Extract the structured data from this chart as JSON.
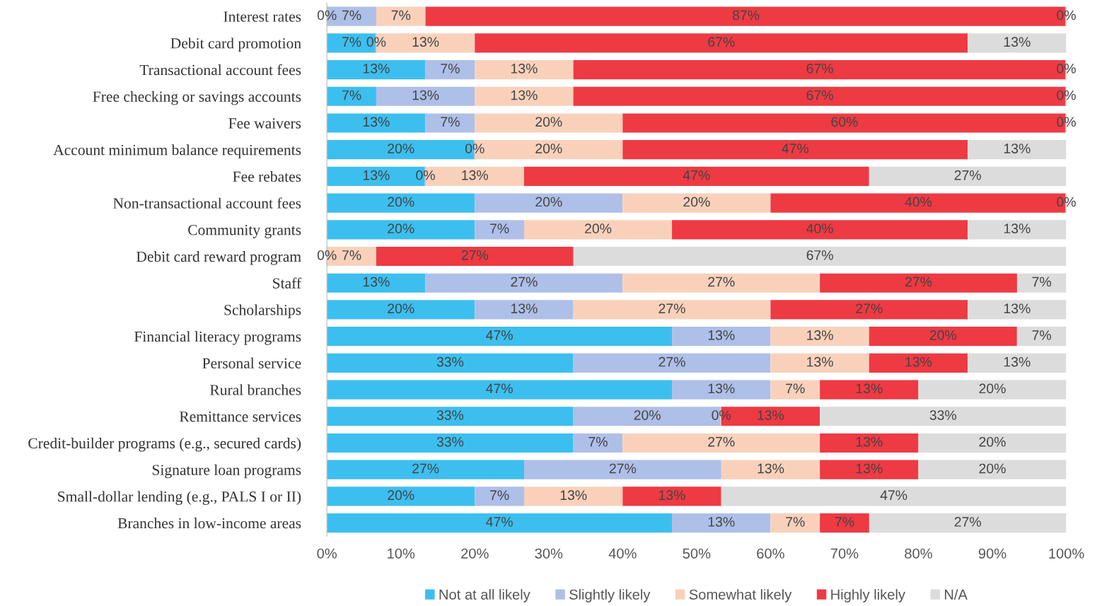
{
  "chart_data": {
    "type": "bar",
    "orientation": "horizontal",
    "stacked": true,
    "categories": [
      "Interest rates",
      "Debit card promotion",
      "Transactional account fees",
      "Free checking or savings accounts",
      "Fee waivers",
      "Account minimum balance requirements",
      "Fee rebates",
      "Non-transactional account fees",
      "Community grants",
      "Debit card reward program",
      "Staff",
      "Scholarships",
      "Financial literacy programs",
      "Personal service",
      "Rural branches",
      "Remittance services",
      "Credit-builder programs (e.g., secured cards)",
      "Signature loan programs",
      "Small-dollar lending (e.g., PALS I or II)",
      "Branches in low-income areas"
    ],
    "series": [
      {
        "name": "Not at all likely",
        "color": "#3cbfef",
        "values": [
          0,
          6.67,
          13.33,
          6.67,
          13.33,
          20,
          13.33,
          20,
          20,
          0,
          13.33,
          20,
          46.67,
          33.33,
          46.67,
          33.33,
          33.33,
          26.67,
          20,
          46.67
        ],
        "value_labels": [
          "0%",
          "7%",
          "13%",
          "7%",
          "13%",
          "20%",
          "13%",
          "20%",
          "20%",
          "0%",
          "13%",
          "20%",
          "47%",
          "33%",
          "47%",
          "33%",
          "33%",
          "27%",
          "20%",
          "47%"
        ]
      },
      {
        "name": "Slightly likely",
        "color": "#aebfe8",
        "values": [
          6.67,
          0,
          6.67,
          13.33,
          6.67,
          0,
          0,
          20,
          6.67,
          0,
          26.67,
          13.33,
          13.33,
          26.67,
          13.33,
          20,
          6.67,
          26.67,
          6.67,
          13.33
        ],
        "value_labels": [
          "7%",
          "0%",
          "7%",
          "13%",
          "7%",
          "0%",
          "0%",
          "20%",
          "7%",
          null,
          "27%",
          "13%",
          "13%",
          "27%",
          "13%",
          "20%",
          "7%",
          "27%",
          "7%",
          "13%"
        ]
      },
      {
        "name": "Somewhat likely",
        "color": "#f9d1bb",
        "values": [
          6.67,
          13.33,
          13.33,
          13.33,
          20,
          20,
          13.33,
          20,
          20,
          6.67,
          26.67,
          26.67,
          13.33,
          13.33,
          6.67,
          0,
          26.67,
          13.33,
          13.33,
          6.67
        ],
        "value_labels": [
          "7%",
          "13%",
          "13%",
          "13%",
          "20%",
          "20%",
          "13%",
          "20%",
          "20%",
          "7%",
          "27%",
          "27%",
          "13%",
          "13%",
          "7%",
          "0%",
          "27%",
          "13%",
          "13%",
          "7%"
        ]
      },
      {
        "name": "Highly likely",
        "color": "#ee3a43",
        "values": [
          86.66,
          66.67,
          66.67,
          66.67,
          60,
          46.67,
          46.67,
          40,
          40,
          26.67,
          26.67,
          26.67,
          20,
          13.33,
          13.33,
          13.33,
          13.33,
          13.33,
          13.33,
          6.67
        ],
        "value_labels": [
          "87%",
          "67%",
          "67%",
          "67%",
          "60%",
          "47%",
          "47%",
          "40%",
          "40%",
          "27%",
          "27%",
          "27%",
          "20%",
          "13%",
          "13%",
          "13%",
          "13%",
          "13%",
          "13%",
          "7%"
        ]
      },
      {
        "name": "N/A",
        "color": "#dcdcdc",
        "values": [
          0,
          13.33,
          0,
          0,
          0,
          13.33,
          26.67,
          0,
          13.33,
          66.66,
          6.66,
          13.33,
          6.67,
          13.33,
          20,
          33.33,
          20,
          20,
          46.67,
          26.66
        ],
        "value_labels": [
          "0%",
          "13%",
          "0%",
          "0%",
          "0%",
          "13%",
          "27%",
          "0%",
          "13%",
          "67%",
          "7%",
          "13%",
          "7%",
          "13%",
          "20%",
          "33%",
          "20%",
          "20%",
          "47%",
          "27%"
        ]
      }
    ],
    "xlim": [
      0,
      100
    ],
    "xticks": [
      {
        "value": 0,
        "label": "0%"
      },
      {
        "value": 10,
        "label": "10%"
      },
      {
        "value": 20,
        "label": "20%"
      },
      {
        "value": 30,
        "label": "30%"
      },
      {
        "value": 40,
        "label": "40%"
      },
      {
        "value": 50,
        "label": "50%"
      },
      {
        "value": 60,
        "label": "60%"
      },
      {
        "value": 70,
        "label": "70%"
      },
      {
        "value": 80,
        "label": "80%"
      },
      {
        "value": 90,
        "label": "90%"
      },
      {
        "value": 100,
        "label": "100%"
      }
    ],
    "legend": "bottom",
    "grid": false
  }
}
